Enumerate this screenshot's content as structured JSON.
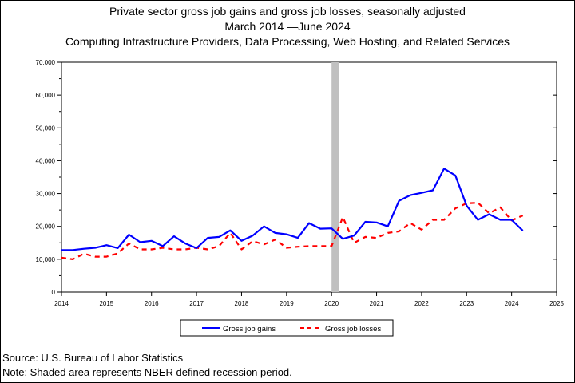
{
  "chart_data": {
    "type": "line",
    "title_lines": [
      "Private sector gross job gains and gross job losses, seasonally adjusted",
      "March 2014 —June 2024",
      "Computing Infrastructure Providers, Data Processing, Web Hosting, and Related Services"
    ],
    "footer": {
      "source": "Source: U.S. Bureau of Labor Statistics",
      "note": "Note: Shaded area represents NBER defined recession period."
    },
    "x_ticks": [
      "2014",
      "2015",
      "2016",
      "2017",
      "2018",
      "2019",
      "2020",
      "2021",
      "2022",
      "2023",
      "2024",
      "2025"
    ],
    "y_ticks": [
      "0",
      "10,000",
      "20,000",
      "30,000",
      "40,000",
      "50,000",
      "60,000",
      "70,000"
    ],
    "xlim": [
      2014,
      2025
    ],
    "ylim": [
      0,
      70000
    ],
    "recession": [
      2020.0,
      2020.17
    ],
    "legend_placement": "bottom",
    "series": [
      {
        "name": "Gross job gains",
        "color": "#0000ff",
        "style": "solid",
        "x": [
          2014.0,
          2014.25,
          2014.5,
          2014.75,
          2015.0,
          2015.25,
          2015.5,
          2015.75,
          2016.0,
          2016.25,
          2016.5,
          2016.75,
          2017.0,
          2017.25,
          2017.5,
          2017.75,
          2018.0,
          2018.25,
          2018.5,
          2018.75,
          2019.0,
          2019.25,
          2019.5,
          2019.75,
          2020.0,
          2020.25,
          2020.5,
          2020.75,
          2021.0,
          2021.25,
          2021.5,
          2021.75,
          2022.0,
          2022.25,
          2022.5,
          2022.75,
          2023.0,
          2023.25,
          2023.5,
          2023.75,
          2024.0,
          2024.25
        ],
        "values": [
          12800,
          12800,
          13200,
          13500,
          14300,
          13400,
          17500,
          15200,
          15600,
          14000,
          17000,
          14800,
          13400,
          16500,
          16800,
          18800,
          15600,
          17200,
          20000,
          18000,
          17600,
          16500,
          21000,
          19300,
          19400,
          16200,
          17200,
          21400,
          21200,
          20000,
          27800,
          29500,
          30200,
          31000,
          37600,
          35500,
          26300,
          22000,
          23700,
          22000,
          22000,
          18700
        ]
      },
      {
        "name": "Gross job losses",
        "color": "#ff0000",
        "style": "dashed",
        "x": [
          2014.0,
          2014.25,
          2014.5,
          2014.75,
          2015.0,
          2015.25,
          2015.5,
          2015.75,
          2016.0,
          2016.25,
          2016.5,
          2016.75,
          2017.0,
          2017.25,
          2017.5,
          2017.75,
          2018.0,
          2018.25,
          2018.5,
          2018.75,
          2019.0,
          2019.25,
          2019.5,
          2019.75,
          2020.0,
          2020.25,
          2020.5,
          2020.75,
          2021.0,
          2021.25,
          2021.5,
          2021.75,
          2022.0,
          2022.25,
          2022.5,
          2022.75,
          2023.0,
          2023.25,
          2023.5,
          2023.75,
          2024.0,
          2024.25
        ],
        "values": [
          10500,
          10000,
          11700,
          10800,
          10800,
          11800,
          14800,
          13000,
          13000,
          13500,
          13000,
          13000,
          13500,
          13000,
          14000,
          18000,
          13000,
          15500,
          14500,
          16000,
          13500,
          13800,
          14000,
          14000,
          14000,
          22800,
          15000,
          16800,
          16500,
          18000,
          18500,
          21000,
          19000,
          22000,
          22000,
          25500,
          27000,
          27200,
          24000,
          25800,
          21800,
          23300
        ]
      }
    ]
  }
}
